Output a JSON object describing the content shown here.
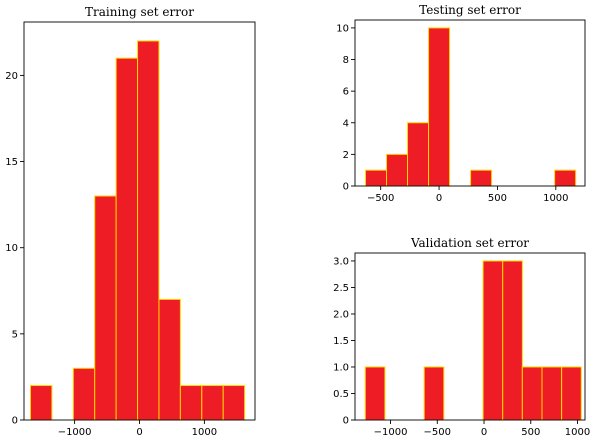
{
  "chart_data": [
    {
      "type": "bar",
      "title": "Training set error",
      "xlim": [
        -1780,
        1780
      ],
      "ylim": [
        0,
        23.1
      ],
      "xticks": [
        -1000,
        0,
        1000
      ],
      "xtick_labels": [
        "−1000",
        "0",
        "1000"
      ],
      "yticks": [
        0,
        5,
        10,
        15,
        20
      ],
      "ytick_labels": [
        "0",
        "5",
        "10",
        "15",
        "20"
      ],
      "bins": [
        [
          -1680,
          -1350,
          2
        ],
        [
          -1020,
          -690,
          3
        ],
        [
          -690,
          -360,
          13
        ],
        [
          -360,
          -30,
          21
        ],
        [
          -30,
          300,
          22
        ],
        [
          300,
          630,
          7
        ],
        [
          630,
          960,
          2
        ],
        [
          960,
          1290,
          2
        ],
        [
          1290,
          1620,
          2
        ]
      ]
    },
    {
      "type": "bar",
      "title": "Testing set error",
      "xlim": [
        -720,
        1250
      ],
      "ylim": [
        0,
        10.5
      ],
      "xticks": [
        -500,
        0,
        500,
        1000
      ],
      "xtick_labels": [
        "−500",
        "0",
        "500",
        "1000"
      ],
      "yticks": [
        0,
        2,
        4,
        6,
        8,
        10
      ],
      "ytick_labels": [
        "0",
        "2",
        "4",
        "6",
        "8",
        "10"
      ],
      "bins": [
        [
          -630,
          -450,
          1
        ],
        [
          -450,
          -270,
          2
        ],
        [
          -270,
          -90,
          4
        ],
        [
          -90,
          90,
          10
        ],
        [
          270,
          450,
          1
        ],
        [
          990,
          1170,
          1
        ]
      ]
    },
    {
      "type": "bar",
      "title": "Validation set error",
      "xlim": [
        -1380,
        1080
      ],
      "ylim": [
        0,
        3.15
      ],
      "xticks": [
        -1000,
        -500,
        0,
        500,
        1000
      ],
      "xtick_labels": [
        "−1000",
        "−500",
        "0",
        "500",
        "1000"
      ],
      "yticks": [
        0,
        0.5,
        1.0,
        1.5,
        2.0,
        2.5,
        3.0
      ],
      "ytick_labels": [
        "0",
        "0.5",
        "1.0",
        "1.5",
        "2.0",
        "2.5",
        "3.0"
      ],
      "bins": [
        [
          -1270,
          -1060,
          1
        ],
        [
          -640,
          -430,
          1
        ],
        [
          -10,
          200,
          3
        ],
        [
          200,
          410,
          3
        ],
        [
          410,
          620,
          1
        ],
        [
          620,
          830,
          1
        ],
        [
          830,
          1040,
          1
        ]
      ]
    }
  ],
  "colors": {
    "bar_fill": "#ee1c24",
    "bar_edge": "#ffd700",
    "axes": "#000000"
  }
}
